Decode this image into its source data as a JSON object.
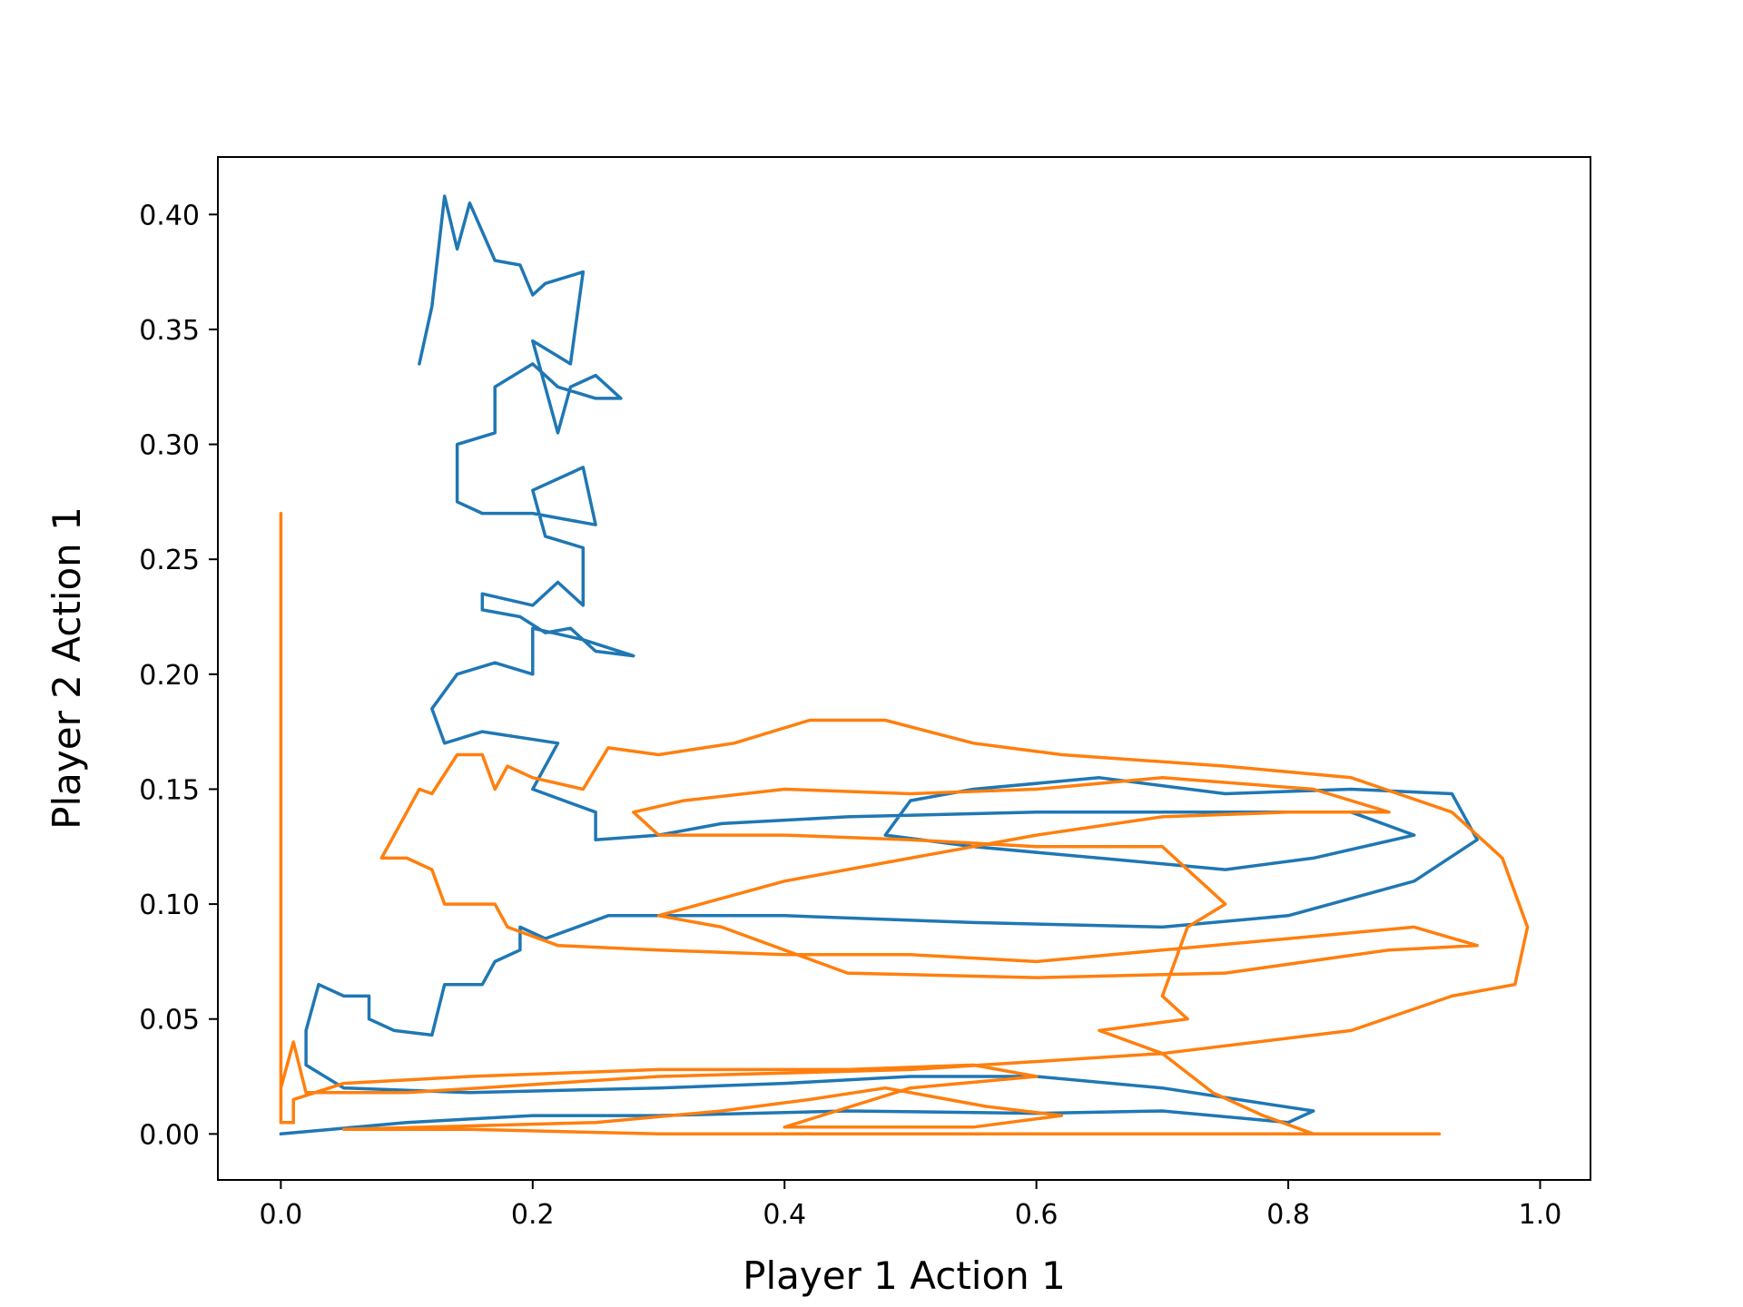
{
  "chart_data": {
    "type": "line",
    "title": "",
    "xlabel": "Player 1 Action 1",
    "ylabel": "Player 2 Action 1",
    "xlim": [
      -0.05,
      1.04
    ],
    "ylim": [
      -0.02,
      0.425
    ],
    "xticks": [
      {
        "value": 0.0,
        "label": "0.0"
      },
      {
        "value": 0.2,
        "label": "0.2"
      },
      {
        "value": 0.4,
        "label": "0.4"
      },
      {
        "value": 0.6,
        "label": "0.6"
      },
      {
        "value": 0.8,
        "label": "0.8"
      },
      {
        "value": 1.0,
        "label": "1.0"
      }
    ],
    "yticks": [
      {
        "value": 0.0,
        "label": "0.00"
      },
      {
        "value": 0.05,
        "label": "0.05"
      },
      {
        "value": 0.1,
        "label": "0.10"
      },
      {
        "value": 0.15,
        "label": "0.15"
      },
      {
        "value": 0.2,
        "label": "0.20"
      },
      {
        "value": 0.25,
        "label": "0.25"
      },
      {
        "value": 0.3,
        "label": "0.30"
      },
      {
        "value": 0.35,
        "label": "0.35"
      },
      {
        "value": 0.4,
        "label": "0.40"
      }
    ],
    "grid": false,
    "legend": "none",
    "series": [
      {
        "color": "#1f77b4",
        "points": [
          [
            0.0,
            0.0
          ],
          [
            0.1,
            0.005
          ],
          [
            0.2,
            0.008
          ],
          [
            0.3,
            0.008
          ],
          [
            0.45,
            0.01
          ],
          [
            0.6,
            0.009
          ],
          [
            0.7,
            0.01
          ],
          [
            0.8,
            0.005
          ],
          [
            0.82,
            0.01
          ],
          [
            0.76,
            0.015
          ],
          [
            0.7,
            0.02
          ],
          [
            0.6,
            0.025
          ],
          [
            0.5,
            0.025
          ],
          [
            0.4,
            0.022
          ],
          [
            0.3,
            0.02
          ],
          [
            0.15,
            0.018
          ],
          [
            0.05,
            0.02
          ],
          [
            0.02,
            0.03
          ],
          [
            0.02,
            0.045
          ],
          [
            0.03,
            0.065
          ],
          [
            0.05,
            0.06
          ],
          [
            0.07,
            0.06
          ],
          [
            0.07,
            0.05
          ],
          [
            0.09,
            0.045
          ],
          [
            0.12,
            0.043
          ],
          [
            0.13,
            0.065
          ],
          [
            0.16,
            0.065
          ],
          [
            0.17,
            0.075
          ],
          [
            0.19,
            0.08
          ],
          [
            0.19,
            0.09
          ],
          [
            0.21,
            0.085
          ],
          [
            0.26,
            0.095
          ],
          [
            0.4,
            0.095
          ],
          [
            0.55,
            0.092
          ],
          [
            0.7,
            0.09
          ],
          [
            0.8,
            0.095
          ],
          [
            0.9,
            0.11
          ],
          [
            0.95,
            0.128
          ],
          [
            0.93,
            0.148
          ],
          [
            0.85,
            0.15
          ],
          [
            0.75,
            0.148
          ],
          [
            0.65,
            0.155
          ],
          [
            0.55,
            0.15
          ],
          [
            0.5,
            0.145
          ],
          [
            0.48,
            0.13
          ],
          [
            0.55,
            0.125
          ],
          [
            0.65,
            0.12
          ],
          [
            0.75,
            0.115
          ],
          [
            0.82,
            0.12
          ],
          [
            0.9,
            0.13
          ],
          [
            0.85,
            0.14
          ],
          [
            0.72,
            0.14
          ],
          [
            0.6,
            0.14
          ],
          [
            0.45,
            0.138
          ],
          [
            0.35,
            0.135
          ],
          [
            0.3,
            0.13
          ],
          [
            0.25,
            0.128
          ],
          [
            0.25,
            0.14
          ],
          [
            0.2,
            0.15
          ],
          [
            0.22,
            0.17
          ],
          [
            0.16,
            0.175
          ],
          [
            0.13,
            0.17
          ],
          [
            0.12,
            0.185
          ],
          [
            0.14,
            0.2
          ],
          [
            0.17,
            0.205
          ],
          [
            0.2,
            0.2
          ],
          [
            0.2,
            0.22
          ],
          [
            0.24,
            0.215
          ],
          [
            0.28,
            0.208
          ],
          [
            0.25,
            0.21
          ],
          [
            0.23,
            0.22
          ],
          [
            0.21,
            0.218
          ],
          [
            0.19,
            0.225
          ],
          [
            0.16,
            0.228
          ],
          [
            0.16,
            0.235
          ],
          [
            0.2,
            0.23
          ],
          [
            0.22,
            0.24
          ],
          [
            0.24,
            0.23
          ],
          [
            0.24,
            0.255
          ],
          [
            0.21,
            0.26
          ],
          [
            0.2,
            0.28
          ],
          [
            0.24,
            0.29
          ],
          [
            0.25,
            0.265
          ],
          [
            0.2,
            0.27
          ],
          [
            0.16,
            0.27
          ],
          [
            0.14,
            0.275
          ],
          [
            0.14,
            0.3
          ],
          [
            0.17,
            0.305
          ],
          [
            0.17,
            0.325
          ],
          [
            0.2,
            0.335
          ],
          [
            0.22,
            0.325
          ],
          [
            0.25,
            0.32
          ],
          [
            0.27,
            0.32
          ],
          [
            0.25,
            0.33
          ],
          [
            0.23,
            0.325
          ],
          [
            0.22,
            0.305
          ],
          [
            0.2,
            0.345
          ],
          [
            0.23,
            0.335
          ],
          [
            0.24,
            0.375
          ],
          [
            0.21,
            0.37
          ],
          [
            0.2,
            0.365
          ],
          [
            0.19,
            0.378
          ],
          [
            0.17,
            0.38
          ],
          [
            0.15,
            0.405
          ],
          [
            0.14,
            0.385
          ],
          [
            0.13,
            0.408
          ],
          [
            0.12,
            0.36
          ],
          [
            0.11,
            0.335
          ]
        ]
      },
      {
        "color": "#ff7f0e",
        "points": [
          [
            0.92,
            0.0
          ],
          [
            0.8,
            0.0
          ],
          [
            0.6,
            0.0
          ],
          [
            0.45,
            0.0
          ],
          [
            0.3,
            0.0
          ],
          [
            0.15,
            0.002
          ],
          [
            0.05,
            0.002
          ],
          [
            0.25,
            0.005
          ],
          [
            0.35,
            0.01
          ],
          [
            0.42,
            0.015
          ],
          [
            0.48,
            0.02
          ],
          [
            0.56,
            0.012
          ],
          [
            0.62,
            0.008
          ],
          [
            0.55,
            0.003
          ],
          [
            0.4,
            0.003
          ],
          [
            0.5,
            0.02
          ],
          [
            0.6,
            0.025
          ],
          [
            0.55,
            0.03
          ],
          [
            0.45,
            0.028
          ],
          [
            0.3,
            0.028
          ],
          [
            0.15,
            0.025
          ],
          [
            0.05,
            0.022
          ],
          [
            0.01,
            0.015
          ],
          [
            0.01,
            0.005
          ],
          [
            0.0,
            0.005
          ],
          [
            0.0,
            0.27
          ],
          [
            0.0,
            0.02
          ],
          [
            0.01,
            0.04
          ],
          [
            0.02,
            0.018
          ],
          [
            0.1,
            0.018
          ],
          [
            0.3,
            0.025
          ],
          [
            0.5,
            0.028
          ],
          [
            0.7,
            0.035
          ],
          [
            0.85,
            0.045
          ],
          [
            0.93,
            0.06
          ],
          [
            0.98,
            0.065
          ],
          [
            0.99,
            0.09
          ],
          [
            0.97,
            0.12
          ],
          [
            0.93,
            0.14
          ],
          [
            0.85,
            0.155
          ],
          [
            0.75,
            0.16
          ],
          [
            0.62,
            0.165
          ],
          [
            0.55,
            0.17
          ],
          [
            0.48,
            0.18
          ],
          [
            0.42,
            0.18
          ],
          [
            0.36,
            0.17
          ],
          [
            0.3,
            0.165
          ],
          [
            0.26,
            0.168
          ],
          [
            0.24,
            0.15
          ],
          [
            0.2,
            0.155
          ],
          [
            0.18,
            0.16
          ],
          [
            0.17,
            0.15
          ],
          [
            0.16,
            0.165
          ],
          [
            0.14,
            0.165
          ],
          [
            0.12,
            0.148
          ],
          [
            0.11,
            0.15
          ],
          [
            0.1,
            0.14
          ],
          [
            0.09,
            0.13
          ],
          [
            0.08,
            0.12
          ],
          [
            0.1,
            0.12
          ],
          [
            0.12,
            0.115
          ],
          [
            0.13,
            0.1
          ],
          [
            0.17,
            0.1
          ],
          [
            0.18,
            0.09
          ],
          [
            0.22,
            0.082
          ],
          [
            0.3,
            0.08
          ],
          [
            0.4,
            0.078
          ],
          [
            0.5,
            0.078
          ],
          [
            0.6,
            0.075
          ],
          [
            0.7,
            0.08
          ],
          [
            0.8,
            0.085
          ],
          [
            0.9,
            0.09
          ],
          [
            0.95,
            0.082
          ],
          [
            0.88,
            0.08
          ],
          [
            0.75,
            0.07
          ],
          [
            0.6,
            0.068
          ],
          [
            0.45,
            0.07
          ],
          [
            0.35,
            0.09
          ],
          [
            0.3,
            0.095
          ],
          [
            0.4,
            0.11
          ],
          [
            0.5,
            0.12
          ],
          [
            0.6,
            0.13
          ],
          [
            0.7,
            0.138
          ],
          [
            0.8,
            0.14
          ],
          [
            0.88,
            0.14
          ],
          [
            0.82,
            0.15
          ],
          [
            0.7,
            0.155
          ],
          [
            0.6,
            0.15
          ],
          [
            0.5,
            0.148
          ],
          [
            0.4,
            0.15
          ],
          [
            0.32,
            0.145
          ],
          [
            0.28,
            0.14
          ],
          [
            0.3,
            0.13
          ],
          [
            0.4,
            0.13
          ],
          [
            0.5,
            0.128
          ],
          [
            0.6,
            0.125
          ],
          [
            0.7,
            0.125
          ],
          [
            0.75,
            0.1
          ],
          [
            0.72,
            0.09
          ],
          [
            0.7,
            0.06
          ],
          [
            0.72,
            0.05
          ],
          [
            0.65,
            0.045
          ],
          [
            0.7,
            0.035
          ],
          [
            0.74,
            0.018
          ],
          [
            0.78,
            0.008
          ],
          [
            0.82,
            0.0
          ],
          [
            0.92,
            0.0
          ]
        ]
      }
    ]
  }
}
